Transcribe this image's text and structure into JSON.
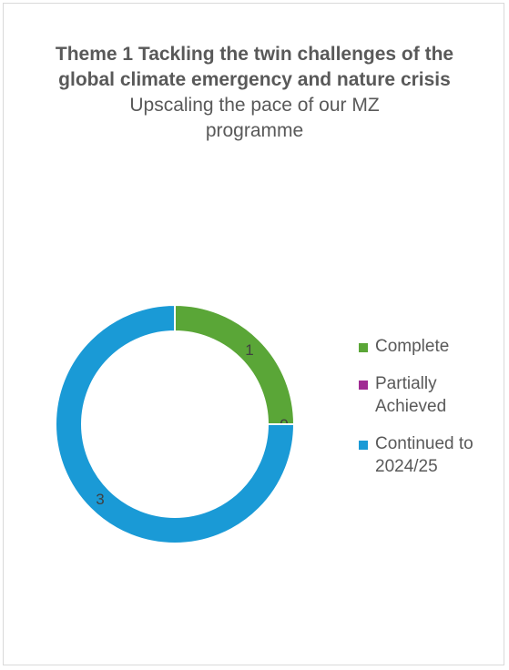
{
  "chart_data": {
    "type": "pie",
    "variant": "doughnut",
    "title": "Theme 1 Tackling the twin challenges of the global climate emergency and nature crisis",
    "subtitle": "Upscaling the pace of our MZ programme",
    "categories": [
      "Complete",
      "Partially Achieved",
      "Continued to 2024/25"
    ],
    "values": [
      1,
      0,
      3
    ],
    "data_labels": [
      "1",
      "0",
      "3"
    ],
    "colors": [
      "#5aa637",
      "#a02b93",
      "#1a9ad6"
    ],
    "legend_position": "right"
  }
}
